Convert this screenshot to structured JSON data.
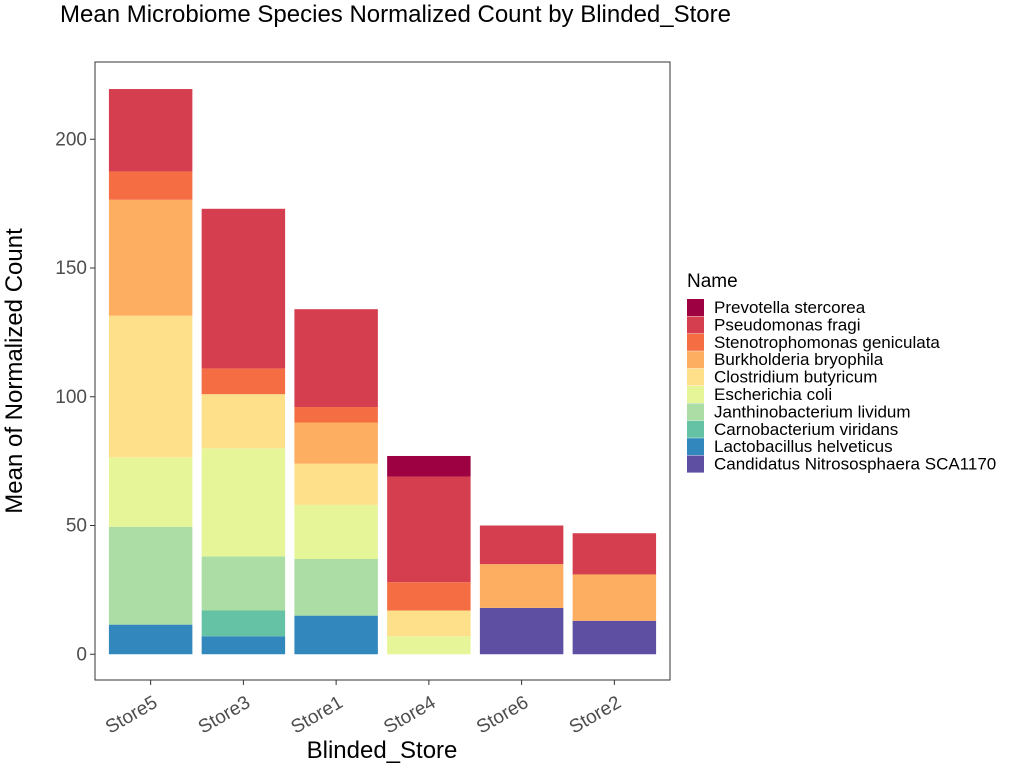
{
  "chart_data": {
    "type": "bar",
    "stacked": true,
    "title": "Mean Microbiome Species Normalized Count by Blinded_Store",
    "xlabel": "Blinded_Store",
    "ylabel": "Mean of Normalized Count",
    "ylim": [
      -10,
      230
    ],
    "yticks": [
      0,
      50,
      100,
      150,
      200
    ],
    "categories": [
      "Store5",
      "Store3",
      "Store1",
      "Store4",
      "Store6",
      "Store2"
    ],
    "legend_title": "Name",
    "legend_position": "right",
    "grid": false,
    "series": [
      {
        "name": "Prevotella stercorea",
        "color": "#9E0142",
        "values": [
          0,
          0,
          0,
          8,
          0,
          0
        ]
      },
      {
        "name": "Pseudomonas fragi",
        "color": "#D53E4F",
        "values": [
          32,
          62,
          38,
          41,
          15,
          16
        ]
      },
      {
        "name": "Stenotrophomonas geniculata",
        "color": "#F46D43",
        "values": [
          11,
          10,
          6,
          11,
          0,
          0
        ]
      },
      {
        "name": "Burkholderia bryophila",
        "color": "#FDAE61",
        "values": [
          45,
          0,
          16,
          0,
          17,
          18
        ]
      },
      {
        "name": "Clostridium butyricum",
        "color": "#FEE08B",
        "values": [
          55,
          21,
          16,
          10,
          0,
          0
        ]
      },
      {
        "name": "Escherichia coli",
        "color": "#E6F598",
        "values": [
          27,
          42,
          21,
          7,
          0,
          0
        ]
      },
      {
        "name": "Janthinobacterium lividum",
        "color": "#ABDDA4",
        "values": [
          38,
          21,
          22,
          0,
          0,
          0
        ]
      },
      {
        "name": "Carnobacterium viridans",
        "color": "#66C2A5",
        "values": [
          0,
          10,
          0,
          0,
          0,
          0
        ]
      },
      {
        "name": "Lactobacillus helveticus",
        "color": "#3288BD",
        "values": [
          11.5,
          7,
          15,
          0,
          0,
          0
        ]
      },
      {
        "name": "Candidatus Nitrososphaera SCA1170",
        "color": "#5E4FA2",
        "values": [
          0,
          0,
          0,
          0,
          18,
          13
        ]
      }
    ]
  }
}
